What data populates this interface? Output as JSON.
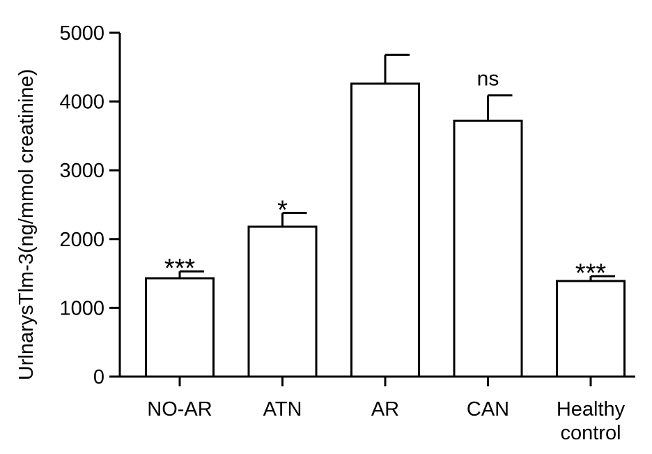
{
  "chart_data": {
    "type": "bar",
    "title": "",
    "xlabel": "",
    "ylabel": "UrlnarysTlm-3(ng/mmol creatinine)",
    "ylim": [
      0,
      5000
    ],
    "yticks": [
      0,
      1000,
      2000,
      3000,
      4000,
      5000
    ],
    "categories": [
      [
        "NO-AR"
      ],
      [
        "ATN"
      ],
      [
        "AR"
      ],
      [
        "CAN"
      ],
      [
        "Healthy",
        "control"
      ]
    ],
    "values": [
      1430,
      2180,
      4260,
      3720,
      1390
    ],
    "errors": [
      100,
      200,
      420,
      370,
      70
    ],
    "significance": [
      "***",
      "*",
      "",
      "ns",
      "***"
    ],
    "bar_fill": "#ffffff",
    "bar_stroke": "#000000",
    "grid": false,
    "legend": "none"
  }
}
